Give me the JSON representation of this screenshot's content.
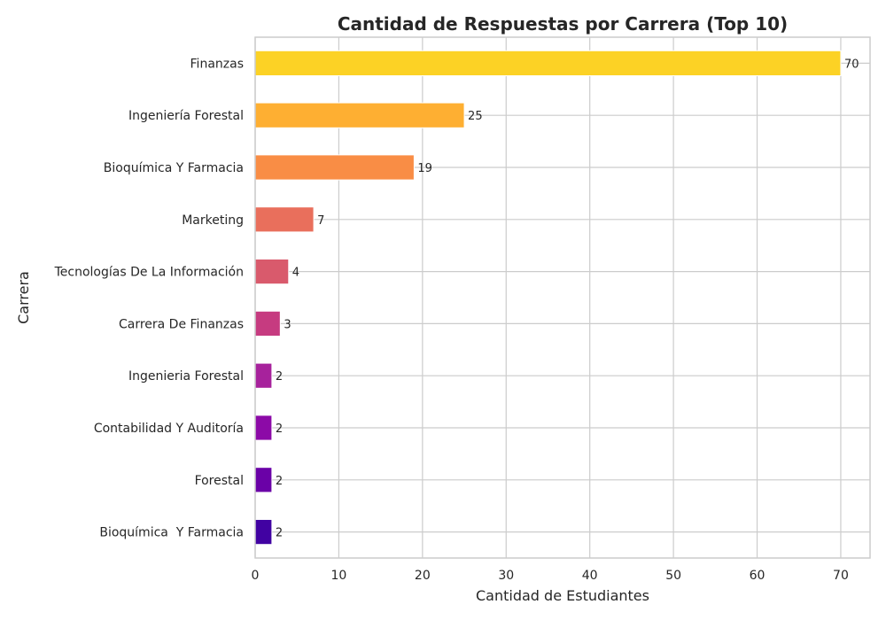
{
  "chart_data": {
    "type": "bar",
    "orientation": "horizontal",
    "title": "Cantidad de Respuestas por Carrera (Top 10)",
    "xlabel": "Cantidad de Estudiantes",
    "ylabel": "Carrera",
    "xlim": [
      0,
      73.5
    ],
    "x_ticks": [
      0,
      10,
      20,
      30,
      40,
      50,
      60,
      70
    ],
    "grid": true,
    "categories": [
      "Finanzas",
      "Ingeniería Forestal",
      "Bioquímica Y Farmacia",
      "Marketing",
      "Tecnologías De La Información",
      "Carrera De Finanzas",
      "Ingenieria Forestal",
      "Contabilidad Y Auditoría",
      "Forestal",
      "Bioquímica  Y Farmacia"
    ],
    "values": [
      70,
      25,
      19,
      7,
      4,
      3,
      2,
      2,
      2,
      2
    ],
    "colors": [
      "#fcd225",
      "#feaf32",
      "#f98d45",
      "#e96f5c",
      "#d95a6c",
      "#c63b80",
      "#a7229c",
      "#8c0aa7",
      "#6a01a7",
      "#4102a2"
    ]
  }
}
